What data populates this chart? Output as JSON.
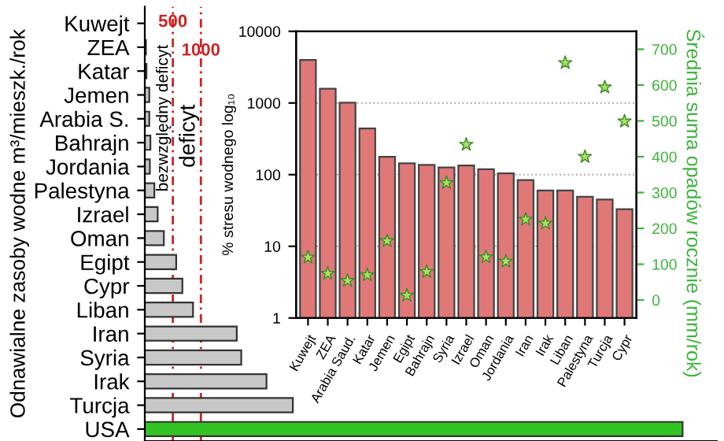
{
  "chart_data": [
    {
      "type": "bar",
      "orientation": "horizontal",
      "ylabel": "Odnawialne zasoby wodne m³/mieszk./rok",
      "categories": [
        "Kuwejt",
        "ZEA",
        "Katar",
        "Jemen",
        "Arabia S.",
        "Bahrajn",
        "Jordania",
        "Palestyna",
        "Izrael",
        "Oman",
        "Egipt",
        "Cypr",
        "Liban",
        "Iran",
        "Syria",
        "Irak",
        "Turcja",
        "USA"
      ],
      "values": [
        null,
        20,
        30,
        80,
        80,
        100,
        90,
        170,
        230,
        340,
        560,
        670,
        860,
        1640,
        1720,
        2170,
        2640,
        9590
      ],
      "colors": [
        "#c8c8c8",
        "#c8c8c8",
        "#c8c8c8",
        "#c8c8c8",
        "#c8c8c8",
        "#c8c8c8",
        "#c8c8c8",
        "#c8c8c8",
        "#c8c8c8",
        "#c8c8c8",
        "#c8c8c8",
        "#c8c8c8",
        "#c8c8c8",
        "#c8c8c8",
        "#c8c8c8",
        "#c8c8c8",
        "#c8c8c8",
        "#33c423"
      ],
      "xlim": [
        0,
        10200
      ],
      "tick_labels": "y",
      "ref_lines": [
        {
          "axis": "x",
          "value": 500,
          "label": "500",
          "color": "#cc2222",
          "line_style": "dashed"
        },
        {
          "axis": "x",
          "value": 1000,
          "label": "1000",
          "color": "#cc2222",
          "line_style": "dashed"
        }
      ],
      "annotations": [
        "bezwzględny deficyt",
        "deficyt"
      ]
    },
    {
      "type": "bar",
      "ylabel": "% stresu wodnego log₁₀",
      "y2label": "Średnia suma opadów rocznie (mm/rok)",
      "categories": [
        "Kuwejt",
        "ZEA",
        "Arabia Saud.",
        "Katar",
        "Jemen",
        "Egipt",
        "Bahrajn",
        "Syria",
        "Izrael",
        "Oman",
        "Jordania",
        "Iran",
        "Irak",
        "Liban",
        "Palestyna",
        "Turcja",
        "Cypr"
      ],
      "series": [
        {
          "type": "bar",
          "color": "#e07878",
          "values": [
            3980,
            1580,
            1010,
            440,
            177,
            144,
            137,
            126,
            134,
            119,
            104,
            84,
            60,
            60,
            49,
            45,
            33
          ]
        },
        {
          "type": "scatter",
          "axis": "y2",
          "color": "#a8e060",
          "marker": "star",
          "values": [
            119,
            74,
            54,
            70,
            165,
            13,
            79,
            327,
            434,
            120,
            108,
            225,
            214,
            662,
            400,
            594,
            499
          ]
        }
      ],
      "log": "y",
      "ylim": [
        1,
        10000
      ],
      "yticks": [
        1,
        10,
        100,
        1000,
        10000
      ],
      "y2lim": [
        -50,
        750
      ],
      "y2ticks": [
        0,
        100,
        200,
        300,
        400,
        500,
        600,
        700
      ],
      "grid": "y"
    }
  ]
}
